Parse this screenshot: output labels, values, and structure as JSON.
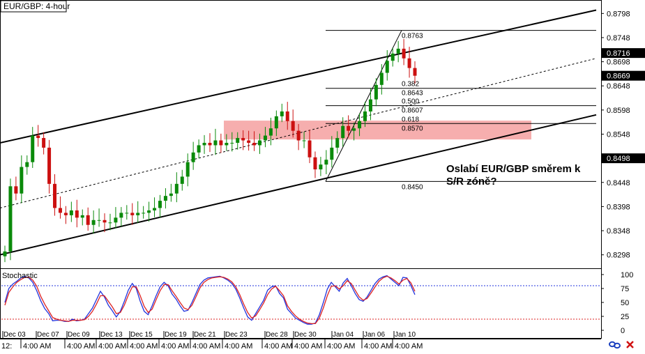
{
  "symbol_title": "EUR/GBP: 4-hour",
  "annotation": [
    "Oslabí EUR/GBP směrem k",
    "S/R zóně?"
  ],
  "bottom_left_label": "12:",
  "icons": [
    "link-icon",
    "close-icon"
  ],
  "colors": {
    "bull_candle": "#0a8a0a",
    "bear_candle": "#cc1010",
    "sr_zone": "#f5a0a0",
    "stoch_k": "#2233dd",
    "stoch_d": "#dd2222",
    "stoch_upper": "#2233dd",
    "stoch_lower": "#dd2222",
    "axis_label_bg": "#000000"
  },
  "chart_data": [
    {
      "type": "candlestick",
      "title": "EUR/GBP: 4-hour",
      "ylim": [
        0.8273,
        0.8823
      ],
      "y_ticks": [
        0.8798,
        0.8748,
        0.8698,
        0.8648,
        0.8598,
        0.8548,
        0.8448,
        0.8398,
        0.8348,
        0.8298
      ],
      "x_date_labels": [
        "Dec 03",
        "Dec 07",
        "Dec 09",
        "Dec 13",
        "Dec 15",
        "Dec 19",
        "Dec 21",
        "Dec 23",
        "Dec 28",
        "Dec 30",
        "Jan 04",
        "Jan 06",
        "Jan 10"
      ],
      "x_date_positions": [
        0,
        14,
        23,
        34,
        43,
        55,
        65,
        76,
        90,
        101,
        115,
        129,
        141
      ],
      "x_time_label": "4:00 AM",
      "x_time_positions": [
        10,
        20,
        30,
        40,
        50,
        60,
        70,
        80,
        92,
        102,
        114,
        123,
        134
      ],
      "current_price_labels": [
        0.8716,
        0.8669,
        0.8498
      ],
      "approx_close": [
        0.8305,
        0.844,
        0.8425,
        0.848,
        0.849,
        0.8545,
        0.854,
        0.852,
        0.8445,
        0.8395,
        0.8385,
        0.838,
        0.839,
        0.8375,
        0.838,
        0.836,
        0.837,
        0.837,
        0.8365,
        0.8365,
        0.8375,
        0.8385,
        0.8385,
        0.838,
        0.8385,
        0.8385,
        0.839,
        0.8395,
        0.841,
        0.842,
        0.8425,
        0.8445,
        0.846,
        0.849,
        0.851,
        0.8525,
        0.853,
        0.8525,
        0.8535,
        0.8525,
        0.853,
        0.853,
        0.854,
        0.8535,
        0.853,
        0.8525,
        0.8535,
        0.8545,
        0.856,
        0.8585,
        0.8595,
        0.8575,
        0.8555,
        0.8535,
        0.8535,
        0.85,
        0.8475,
        0.8485,
        0.8495,
        0.852,
        0.854,
        0.8565,
        0.8555,
        0.856,
        0.8575,
        0.8595,
        0.862,
        0.865,
        0.8675,
        0.87,
        0.8715,
        0.8725,
        0.8705,
        0.8685,
        0.8669
      ],
      "channel": {
        "upper": {
          "from": {
            "bar": 0,
            "price": 0.853
          },
          "to": {
            "bar": 145,
            "price": 0.8805
          }
        },
        "middle": {
          "from": {
            "bar": 0,
            "price": 0.8395
          },
          "to": {
            "bar": 145,
            "price": 0.8705
          }
        },
        "lower": {
          "from": {
            "bar": 0,
            "price": 0.8298
          },
          "to": {
            "bar": 145,
            "price": 0.8588
          }
        }
      },
      "fibonacci": {
        "levels": [
          {
            "ratio": "",
            "price": 0.8763,
            "price_label": "0.8763"
          },
          {
            "ratio": "0.382",
            "price": 0.8643,
            "price_label": "0.8643"
          },
          {
            "ratio": "0.500",
            "price": 0.8607,
            "price_label": "0.8607"
          },
          {
            "ratio": "0.618",
            "price": 0.857,
            "price_label": "0.8570"
          },
          {
            "ratio": "",
            "price": 0.845,
            "price_label": "0.8450"
          }
        ]
      },
      "sr_zone": {
        "from": 0.8537,
        "to": 0.8576
      }
    },
    {
      "type": "line",
      "title": "Stochastic",
      "ylim": [
        0,
        100
      ],
      "y_ticks": [
        100,
        75,
        50,
        25,
        0
      ],
      "levels": [
        80,
        20
      ],
      "series": [
        {
          "name": "",
          "color": "#2233dd",
          "values": [
            50,
            75,
            83,
            88,
            94,
            97,
            94,
            86,
            71,
            53,
            39,
            30,
            17,
            18,
            18,
            16,
            16,
            20,
            17,
            18,
            20,
            30,
            40,
            55,
            70,
            60,
            45,
            35,
            24,
            34,
            52,
            72,
            84,
            75,
            52,
            34,
            28,
            44,
            62,
            78,
            86,
            80,
            65,
            56,
            44,
            34,
            36,
            50,
            66,
            82,
            90,
            94,
            95,
            96,
            97,
            94,
            90,
            84,
            74,
            58,
            40,
            24,
            18,
            30,
            42,
            54,
            72,
            78,
            80,
            66,
            58,
            38,
            30,
            22,
            18,
            14,
            11,
            11,
            13,
            28,
            50,
            74,
            86,
            78,
            70,
            85,
            93,
            80,
            66,
            55,
            52,
            60,
            72,
            84,
            92,
            96,
            98,
            92,
            86,
            80,
            95,
            94,
            80,
            64
          ]
        },
        {
          "name": "",
          "color": "#dd2222",
          "values": [
            45,
            68,
            78,
            86,
            91,
            95,
            95,
            90,
            79,
            61,
            47,
            35,
            23,
            20,
            18,
            17,
            16,
            18,
            18,
            18,
            19,
            25,
            34,
            47,
            62,
            62,
            52,
            42,
            30,
            32,
            45,
            63,
            78,
            78,
            62,
            43,
            32,
            38,
            55,
            71,
            82,
            82,
            71,
            61,
            50,
            40,
            37,
            45,
            60,
            76,
            86,
            91,
            94,
            95,
            96,
            95,
            92,
            87,
            78,
            64,
            47,
            32,
            22,
            26,
            37,
            49,
            64,
            74,
            79,
            71,
            62,
            44,
            34,
            26,
            20,
            16,
            13,
            12,
            12,
            22,
            40,
            62,
            79,
            80,
            74,
            80,
            89,
            84,
            72,
            60,
            54,
            57,
            67,
            78,
            88,
            94,
            97,
            94,
            89,
            83,
            90,
            93,
            85,
            70
          ]
        }
      ]
    }
  ]
}
